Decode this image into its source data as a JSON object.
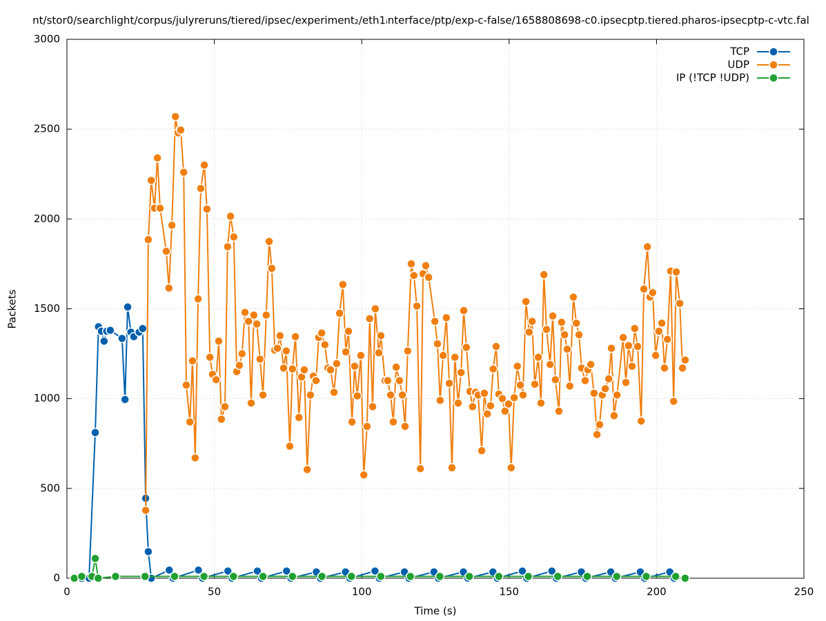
{
  "chart_data": {
    "type": "line",
    "title": "nt/stor0/searchlight/corpus/julyreruns/tiered/ipsec/experiment₂/eth1ᵢnterface/ptp/exp-c-false/1658808698-c0.ipsecptp.tiered.pharos-ipsecptp-c-vtc.fal",
    "xlabel": "Time (s)",
    "ylabel": "Packets",
    "xlim": [
      0,
      250
    ],
    "xticks": [
      0,
      50,
      100,
      150,
      200,
      250
    ],
    "ylim": [
      0,
      3000
    ],
    "yticks": [
      0,
      500,
      1000,
      1500,
      2000,
      2500,
      3000
    ],
    "grid": true,
    "legend": "top-right",
    "series": [
      {
        "name": "TCP",
        "color": "#0060ad",
        "x": [
          2.5,
          5.0,
          7.5,
          9.6,
          10.7,
          11.7,
          12.6,
          13.5,
          14.7,
          18.7,
          19.7,
          20.6,
          21.7,
          22.7,
          24.5,
          25.7,
          26.7,
          27.6,
          28.6,
          34.7,
          36.0,
          44.6,
          46.0,
          54.6,
          56.0,
          64.6,
          66.0,
          74.5,
          76.0,
          84.6,
          86.0,
          94.5,
          96.0,
          104.5,
          106.0,
          114.5,
          116.0,
          124.5,
          126.0,
          134.5,
          136.0,
          144.5,
          146.0,
          154.5,
          156.0,
          164.5,
          166.0,
          174.5,
          176.0,
          184.5,
          186.0,
          194.5,
          196.0,
          204.5,
          206.0,
          209.7
        ],
        "values": [
          0,
          0,
          0,
          811,
          1400,
          1375,
          1320,
          1375,
          1380,
          1335,
          995,
          1510,
          1370,
          1345,
          1370,
          1390,
          445,
          148,
          0,
          45,
          0,
          45,
          0,
          40,
          0,
          40,
          0,
          40,
          0,
          35,
          0,
          35,
          0,
          40,
          0,
          35,
          0,
          35,
          0,
          35,
          0,
          35,
          0,
          40,
          0,
          40,
          0,
          35,
          0,
          35,
          0,
          35,
          0,
          35,
          0,
          0
        ]
      },
      {
        "name": "UDP",
        "color": "#f07f0f",
        "x": [
          26.7,
          27.6,
          28.6,
          29.7,
          30.7,
          31.6,
          33.7,
          34.6,
          35.6,
          36.8,
          37.7,
          38.6,
          39.6,
          40.5,
          41.7,
          42.6,
          43.5,
          44.5,
          45.4,
          46.6,
          47.5,
          48.5,
          49.4,
          50.6,
          51.5,
          52.4,
          53.6,
          54.5,
          55.5,
          56.6,
          57.6,
          58.5,
          59.4,
          60.4,
          61.6,
          62.5,
          63.4,
          64.4,
          65.5,
          66.5,
          67.6,
          68.6,
          69.5,
          70.5,
          71.4,
          72.3,
          73.5,
          74.4,
          75.6,
          76.5,
          77.5,
          78.7,
          79.6,
          80.5,
          81.5,
          82.6,
          83.6,
          84.5,
          85.4,
          86.4,
          87.5,
          88.5,
          89.4,
          90.6,
          91.5,
          92.5,
          93.6,
          94.6,
          95.5,
          96.7,
          97.6,
          98.5,
          99.7,
          100.7,
          101.8,
          102.7,
          103.7,
          104.6,
          105.8,
          106.5,
          107.9,
          108.8,
          109.8,
          110.7,
          111.7,
          112.8,
          113.8,
          114.7,
          115.6,
          116.8,
          117.7,
          118.7,
          119.9,
          120.8,
          121.7,
          122.7,
          124.8,
          125.7,
          126.6,
          127.6,
          128.7,
          129.7,
          130.6,
          131.6,
          132.7,
          133.7,
          134.6,
          135.5,
          136.7,
          137.6,
          138.6,
          139.5,
          140.7,
          141.6,
          142.6,
          143.7,
          144.6,
          145.6,
          146.5,
          147.7,
          148.6,
          149.8,
          150.7,
          151.7,
          152.8,
          153.8,
          154.7,
          155.7,
          156.8,
          157.8,
          158.7,
          159.9,
          160.8,
          161.8,
          162.7,
          163.9,
          164.8,
          165.7,
          166.9,
          167.8,
          168.8,
          169.7,
          170.6,
          171.8,
          172.8,
          173.7,
          174.6,
          175.8,
          176.7,
          177.7,
          178.8,
          179.8,
          180.7,
          181.6,
          182.6,
          183.8,
          184.7,
          185.6,
          186.6,
          188.7,
          189.6,
          190.5,
          191.7,
          192.6,
          193.6,
          194.8,
          195.7,
          196.9,
          197.8,
          198.7,
          199.7,
          200.8,
          201.8,
          202.7,
          203.7,
          204.8,
          205.8,
          206.7,
          207.9,
          208.8,
          209.7
        ],
        "values": [
          378,
          1885,
          2215,
          2060,
          2340,
          2060,
          1820,
          1615,
          1965,
          2570,
          2480,
          2495,
          2260,
          1075,
          870,
          1210,
          670,
          1555,
          2170,
          2300,
          2055,
          1230,
          1135,
          1105,
          1320,
          885,
          955,
          1845,
          2015,
          1900,
          1150,
          1185,
          1250,
          1480,
          1430,
          975,
          1465,
          1415,
          1220,
          1020,
          1465,
          1875,
          1725,
          1270,
          1280,
          1350,
          1170,
          1265,
          735,
          1165,
          1345,
          895,
          1120,
          1160,
          605,
          1020,
          1125,
          1100,
          1340,
          1365,
          1300,
          1170,
          1160,
          1035,
          1195,
          1475,
          1635,
          1260,
          1375,
          870,
          1180,
          1015,
          1240,
          575,
          845,
          1445,
          955,
          1500,
          1255,
          1350,
          1100,
          1100,
          1020,
          870,
          1175,
          1100,
          1020,
          845,
          1265,
          1750,
          1685,
          1515,
          610,
          1695,
          1740,
          1675,
          1430,
          1305,
          990,
          1240,
          1450,
          1085,
          615,
          1230,
          975,
          1145,
          1490,
          1285,
          1040,
          955,
          1035,
          1020,
          710,
          1030,
          915,
          960,
          1165,
          1290,
          1025,
          1000,
          930,
          970,
          615,
          1005,
          1180,
          1075,
          1020,
          1540,
          1370,
          1430,
          1080,
          1230,
          975,
          1690,
          1385,
          1190,
          1460,
          1105,
          930,
          1425,
          1355,
          1275,
          1070,
          1565,
          1420,
          1355,
          1170,
          1100,
          1160,
          1190,
          1030,
          800,
          855,
          1020,
          1055,
          1110,
          1280,
          905,
          1020,
          1340,
          1090,
          1295,
          1180,
          1390,
          1290,
          875,
          1610,
          1845,
          1565,
          1590,
          1240,
          1375,
          1420,
          1170,
          1330,
          1710,
          985,
          1705,
          1530,
          1170,
          1215
        ]
      },
      {
        "name": "IP (!TCP  !UDP)",
        "color": "#20a030",
        "x": [
          2.5,
          5.0,
          8.5,
          9.6,
          10.6,
          16.5,
          26.5,
          36.5,
          46.5,
          56.5,
          66.5,
          76.5,
          86.5,
          96.5,
          106.5,
          116.5,
          126.5,
          136.5,
          146.5,
          156.5,
          166.5,
          176.5,
          186.5,
          196.5,
          206.5,
          209.7
        ],
        "values": [
          0,
          10,
          10,
          110,
          0,
          10,
          10,
          10,
          10,
          10,
          10,
          10,
          10,
          10,
          10,
          10,
          10,
          10,
          10,
          10,
          10,
          10,
          10,
          10,
          10,
          0
        ]
      }
    ]
  }
}
